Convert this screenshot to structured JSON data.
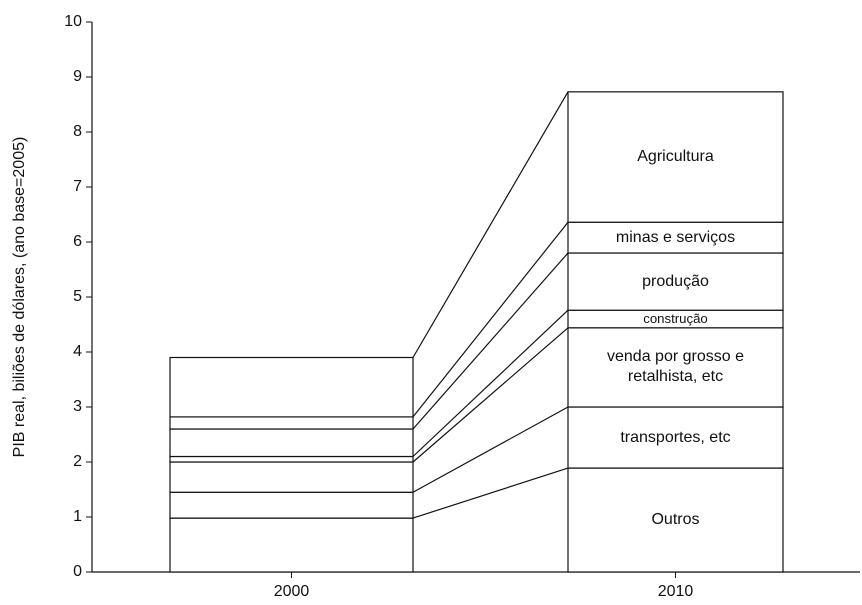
{
  "chart_data": {
    "type": "stacked_bar",
    "ylabel": "PIB real, biliões de dólares, (ano base=2005)",
    "categories": [
      "2000",
      "2010"
    ],
    "series": [
      {
        "name": "Outros",
        "color": "#ffffff",
        "values": [
          0.98,
          1.89
        ]
      },
      {
        "name": "transportes, etc",
        "color": "#ffffff",
        "values": [
          0.47,
          1.11
        ]
      },
      {
        "name": "venda por grosso e retalhista, etc",
        "color": "#ffffff",
        "values": [
          0.55,
          1.44
        ]
      },
      {
        "name": "construção",
        "color": "#ffffff",
        "values": [
          0.1,
          0.32
        ]
      },
      {
        "name": "produção",
        "color": "#ffffff",
        "values": [
          0.5,
          1.04
        ]
      },
      {
        "name": "minas e serviços",
        "color": "#ffffff",
        "values": [
          0.22,
          0.56
        ]
      },
      {
        "name": "Agricultura",
        "color": "#ffffff",
        "values": [
          1.08,
          2.37
        ]
      }
    ],
    "ylim": [
      0,
      10
    ],
    "yticks": [
      0,
      1,
      2,
      3,
      4,
      5,
      6,
      7,
      8,
      9,
      10
    ]
  }
}
